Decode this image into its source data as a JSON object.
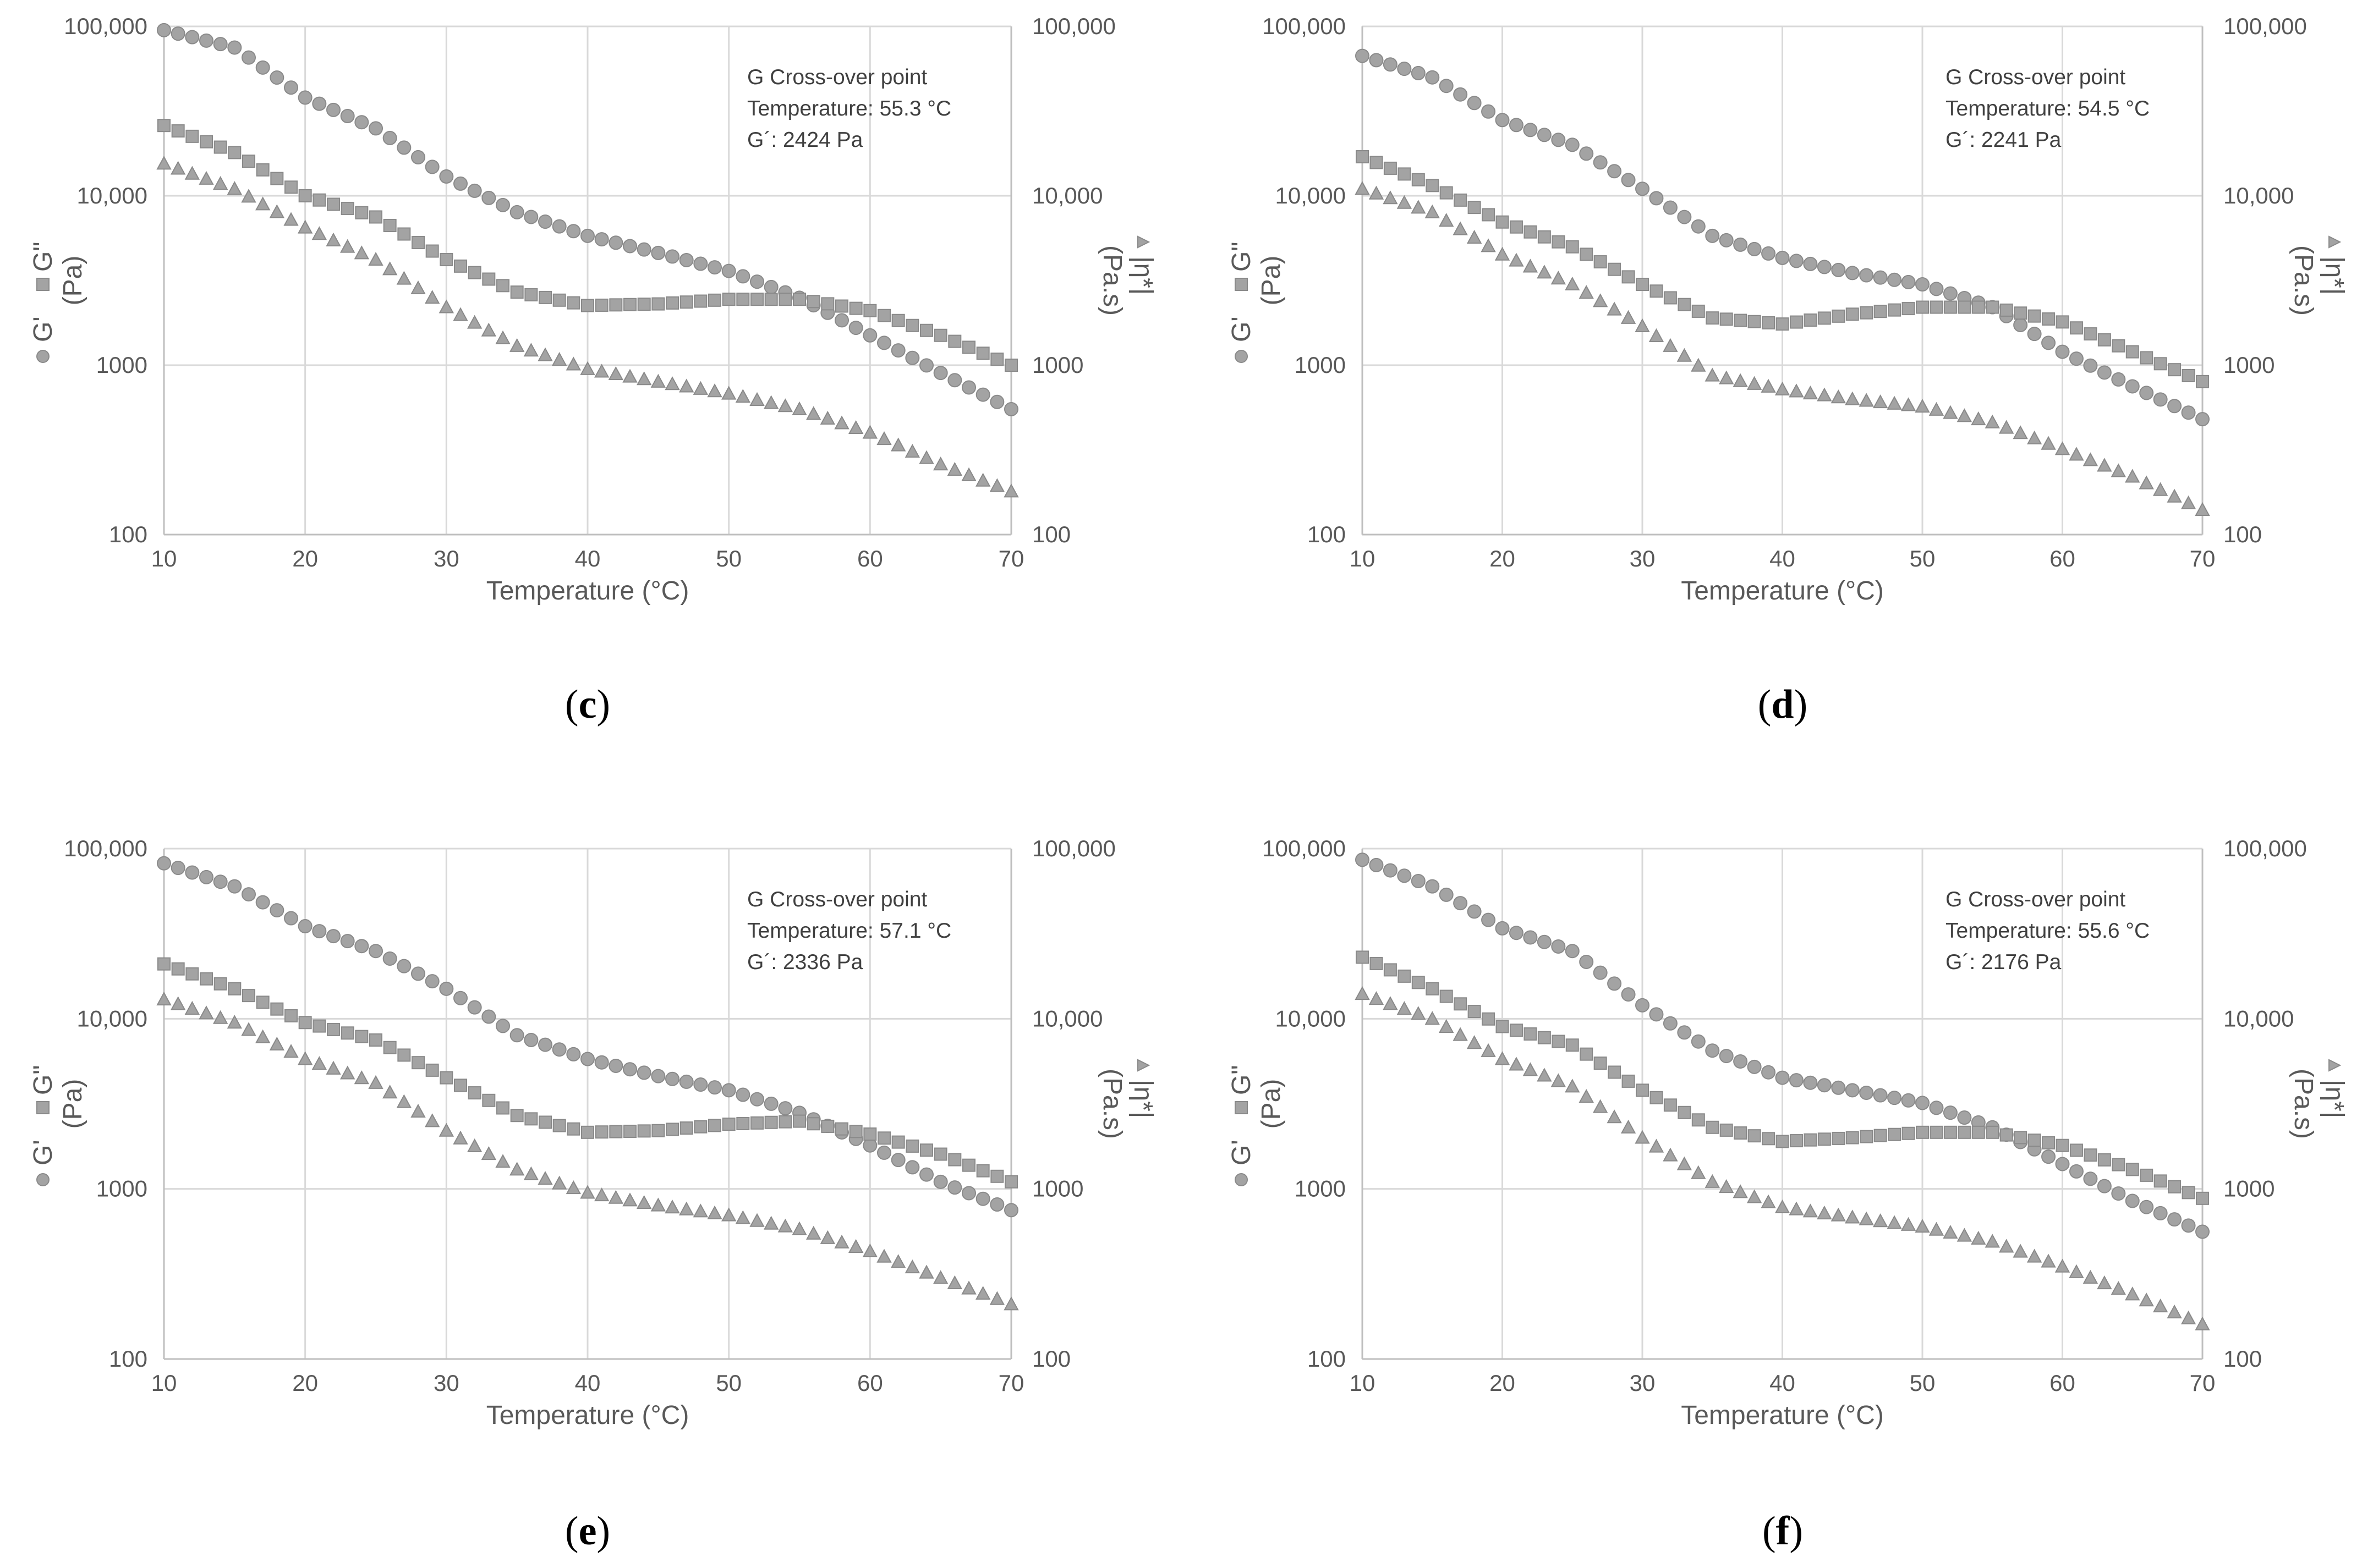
{
  "colors": {
    "marker": "#a3a3a3",
    "marker_edge": "#8a8a8a",
    "grid": "#d9d9d9",
    "axis": "#bfbfbf",
    "text": "#595959"
  },
  "chart_data": [
    {
      "panel": "c",
      "type": "scatter",
      "xlabel": "Temperature (°C)",
      "ylabel_left": [
        "G'",
        "G\"",
        "(Pa)"
      ],
      "ylabel_right": [
        "|η*|",
        "(Pa.s)"
      ],
      "xlim": [
        10,
        70
      ],
      "xticks": [
        "10",
        "20",
        "30",
        "40",
        "50",
        "60",
        "70"
      ],
      "ylim": [
        100,
        100000
      ],
      "yscale": "log",
      "yticks_left": [
        "100,000",
        "10,000",
        "1000",
        "100"
      ],
      "yticks_right": [
        "100,000",
        "10,000",
        "1000",
        "100"
      ],
      "annotation": [
        "G Cross-over point",
        "Temperature:  55.3 °C",
        "G´: 2424 Pa"
      ],
      "series": [
        {
          "name": "G'",
          "marker": "circle",
          "points": [
            [
              10,
              95000
            ],
            [
              15,
              75000
            ],
            [
              20,
              38000
            ],
            [
              25,
              25000
            ],
            [
              30,
              13000
            ],
            [
              35,
              8000
            ],
            [
              40,
              5800
            ],
            [
              45,
              4600
            ],
            [
              50,
              3600
            ],
            [
              55,
              2500
            ],
            [
              60,
              1500
            ],
            [
              65,
              900
            ],
            [
              70,
              550
            ]
          ]
        },
        {
          "name": "G\"",
          "marker": "square",
          "points": [
            [
              10,
              26000
            ],
            [
              15,
              18000
            ],
            [
              20,
              10000
            ],
            [
              25,
              7500
            ],
            [
              30,
              4200
            ],
            [
              35,
              2700
            ],
            [
              40,
              2250
            ],
            [
              45,
              2300
            ],
            [
              50,
              2450
            ],
            [
              55,
              2450
            ],
            [
              60,
              2100
            ],
            [
              65,
              1500
            ],
            [
              70,
              1000
            ]
          ]
        },
        {
          "name": "|η*|",
          "marker": "triangle",
          "points": [
            [
              10,
              15500
            ],
            [
              15,
              11000
            ],
            [
              20,
              6500
            ],
            [
              25,
              4200
            ],
            [
              30,
              2200
            ],
            [
              35,
              1300
            ],
            [
              40,
              950
            ],
            [
              45,
              800
            ],
            [
              50,
              680
            ],
            [
              55,
              550
            ],
            [
              60,
              400
            ],
            [
              65,
              260
            ],
            [
              70,
              180
            ]
          ]
        }
      ]
    },
    {
      "panel": "d",
      "type": "scatter",
      "xlabel": "Temperature (°C)",
      "ylabel_left": [
        "G'",
        "G\"",
        "(Pa)"
      ],
      "ylabel_right": [
        "|η*|",
        "(Pa.s)"
      ],
      "xlim": [
        10,
        70
      ],
      "xticks": [
        "10",
        "20",
        "30",
        "40",
        "50",
        "60",
        "70"
      ],
      "ylim": [
        100,
        100000
      ],
      "yscale": "log",
      "yticks_left": [
        "100,000",
        "10,000",
        "1000",
        "100"
      ],
      "yticks_right": [
        "100,000",
        "10,000",
        "1000",
        "100"
      ],
      "annotation": [
        "G Cross-over point",
        "Temperature:  54.5 °C",
        "G´: 2241 Pa"
      ],
      "series": [
        {
          "name": "G'",
          "marker": "circle",
          "points": [
            [
              10,
              67000
            ],
            [
              15,
              50000
            ],
            [
              20,
              28000
            ],
            [
              25,
              20000
            ],
            [
              30,
              11000
            ],
            [
              35,
              5800
            ],
            [
              40,
              4300
            ],
            [
              45,
              3500
            ],
            [
              50,
              3000
            ],
            [
              55,
              2200
            ],
            [
              60,
              1200
            ],
            [
              65,
              750
            ],
            [
              70,
              480
            ]
          ]
        },
        {
          "name": "G\"",
          "marker": "square",
          "points": [
            [
              10,
              17000
            ],
            [
              15,
              11500
            ],
            [
              20,
              7000
            ],
            [
              25,
              5000
            ],
            [
              30,
              3000
            ],
            [
              35,
              1900
            ],
            [
              40,
              1750
            ],
            [
              45,
              2000
            ],
            [
              50,
              2200
            ],
            [
              55,
              2200
            ],
            [
              60,
              1800
            ],
            [
              65,
              1200
            ],
            [
              70,
              800
            ]
          ]
        },
        {
          "name": "|η*|",
          "marker": "triangle",
          "points": [
            [
              10,
              11000
            ],
            [
              15,
              8000
            ],
            [
              20,
              4500
            ],
            [
              25,
              3000
            ],
            [
              30,
              1700
            ],
            [
              35,
              870
            ],
            [
              40,
              720
            ],
            [
              45,
              630
            ],
            [
              50,
              570
            ],
            [
              55,
              460
            ],
            [
              60,
              320
            ],
            [
              65,
              220
            ],
            [
              70,
              140
            ]
          ]
        }
      ]
    },
    {
      "panel": "e",
      "type": "scatter",
      "xlabel": "Temperature (°C)",
      "ylabel_left": [
        "G'",
        "G\"",
        "(Pa)"
      ],
      "ylabel_right": [
        "|η*|",
        "(Pa.s)"
      ],
      "xlim": [
        10,
        70
      ],
      "xticks": [
        "10",
        "20",
        "30",
        "40",
        "50",
        "60",
        "70"
      ],
      "ylim": [
        100,
        100000
      ],
      "yscale": "log",
      "yticks_left": [
        "100,000",
        "10,000",
        "1000",
        "100"
      ],
      "yticks_right": [
        "100,000",
        "10,000",
        "1000",
        "100"
      ],
      "annotation": [
        "G Cross-over point",
        "Temperature:  57.1 °C",
        "G´: 2336 Pa"
      ],
      "series": [
        {
          "name": "G'",
          "marker": "circle",
          "points": [
            [
              10,
              82000
            ],
            [
              15,
              60000
            ],
            [
              20,
              35000
            ],
            [
              25,
              25000
            ],
            [
              30,
              15000
            ],
            [
              35,
              8000
            ],
            [
              40,
              5800
            ],
            [
              45,
              4600
            ],
            [
              50,
              3800
            ],
            [
              55,
              2800
            ],
            [
              60,
              1800
            ],
            [
              65,
              1100
            ],
            [
              70,
              750
            ]
          ]
        },
        {
          "name": "G\"",
          "marker": "square",
          "points": [
            [
              10,
              21000
            ],
            [
              15,
              15000
            ],
            [
              20,
              9500
            ],
            [
              25,
              7500
            ],
            [
              30,
              4500
            ],
            [
              35,
              2700
            ],
            [
              40,
              2150
            ],
            [
              45,
              2200
            ],
            [
              50,
              2400
            ],
            [
              55,
              2500
            ],
            [
              60,
              2100
            ],
            [
              65,
              1600
            ],
            [
              70,
              1100
            ]
          ]
        },
        {
          "name": "|η*|",
          "marker": "triangle",
          "points": [
            [
              10,
              13000
            ],
            [
              15,
              9500
            ],
            [
              20,
              5800
            ],
            [
              25,
              4200
            ],
            [
              30,
              2200
            ],
            [
              35,
              1300
            ],
            [
              40,
              950
            ],
            [
              45,
              800
            ],
            [
              50,
              700
            ],
            [
              55,
              580
            ],
            [
              60,
              430
            ],
            [
              65,
              300
            ],
            [
              70,
              210
            ]
          ]
        }
      ]
    },
    {
      "panel": "f",
      "type": "scatter",
      "xlabel": "Temperature (°C)",
      "ylabel_left": [
        "G'",
        "G\"",
        "(Pa)"
      ],
      "ylabel_right": [
        "|η*|",
        "(Pa.s)"
      ],
      "xlim": [
        10,
        70
      ],
      "xticks": [
        "10",
        "20",
        "30",
        "40",
        "50",
        "60",
        "70"
      ],
      "ylim": [
        100,
        100000
      ],
      "yscale": "log",
      "yticks_left": [
        "100,000",
        "10,000",
        "1000",
        "100"
      ],
      "yticks_right": [
        "100,000",
        "10,000",
        "1000",
        "100"
      ],
      "annotation": [
        "G Cross-over point",
        "Temperature:  55.6 °C",
        "G´: 2176 Pa"
      ],
      "series": [
        {
          "name": "G'",
          "marker": "circle",
          "points": [
            [
              10,
              86000
            ],
            [
              15,
              60000
            ],
            [
              20,
              34000
            ],
            [
              25,
              25000
            ],
            [
              30,
              12000
            ],
            [
              35,
              6500
            ],
            [
              40,
              4500
            ],
            [
              45,
              3800
            ],
            [
              50,
              3200
            ],
            [
              55,
              2300
            ],
            [
              60,
              1400
            ],
            [
              65,
              850
            ],
            [
              70,
              560
            ]
          ]
        },
        {
          "name": "G\"",
          "marker": "square",
          "points": [
            [
              10,
              23000
            ],
            [
              15,
              15000
            ],
            [
              20,
              9000
            ],
            [
              25,
              7000
            ],
            [
              30,
              3800
            ],
            [
              35,
              2300
            ],
            [
              40,
              1900
            ],
            [
              45,
              2000
            ],
            [
              50,
              2150
            ],
            [
              55,
              2150
            ],
            [
              60,
              1800
            ],
            [
              65,
              1300
            ],
            [
              70,
              880
            ]
          ]
        },
        {
          "name": "|η*|",
          "marker": "triangle",
          "points": [
            [
              10,
              14000
            ],
            [
              15,
              10000
            ],
            [
              20,
              5800
            ],
            [
              25,
              4000
            ],
            [
              30,
              2000
            ],
            [
              35,
              1100
            ],
            [
              40,
              780
            ],
            [
              45,
              680
            ],
            [
              50,
              600
            ],
            [
              55,
              490
            ],
            [
              60,
              350
            ],
            [
              65,
              240
            ],
            [
              70,
              160
            ]
          ]
        }
      ]
    }
  ],
  "panel_labels": [
    {
      "open": "(",
      "letter": "c",
      "close": ")"
    },
    {
      "open": "(",
      "letter": "d",
      "close": ")"
    },
    {
      "open": "(",
      "letter": "e",
      "close": ")"
    },
    {
      "open": "(",
      "letter": "f",
      "close": ")"
    }
  ]
}
